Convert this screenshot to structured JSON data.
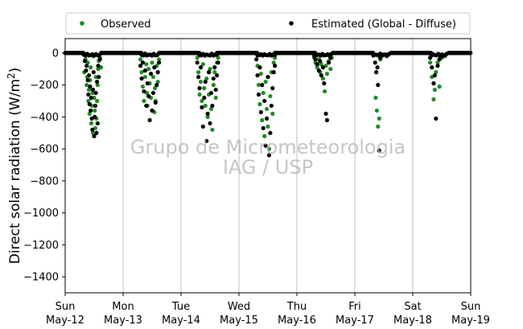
{
  "chart_data": {
    "type": "scatter",
    "ylabel_main": "Direct solar radiation (W/m",
    "ylabel_sup": "2",
    "ylabel_close": ")",
    "xlim": [
      0,
      7
    ],
    "ylim": [
      -1500,
      90
    ],
    "yticks": [
      0,
      -200,
      -400,
      -600,
      -800,
      -1000,
      -1200,
      -1400
    ],
    "xticks": [
      {
        "x": 0,
        "day": "Sun",
        "date": "May-12"
      },
      {
        "x": 1,
        "day": "Mon",
        "date": "May-13"
      },
      {
        "x": 2,
        "day": "Tue",
        "date": "May-14"
      },
      {
        "x": 3,
        "day": "Wed",
        "date": "May-15"
      },
      {
        "x": 4,
        "day": "Thu",
        "date": "May-16"
      },
      {
        "x": 5,
        "day": "Fri",
        "date": "May-17"
      },
      {
        "x": 6,
        "day": "Sat",
        "date": "May-18"
      },
      {
        "x": 7,
        "day": "Sun",
        "date": "May-19"
      }
    ],
    "grid": "vertical",
    "legend_placement": "top",
    "series": [
      {
        "name": "Observed",
        "color": "#228b22",
        "points": [
          [
            0.33,
            -120
          ],
          [
            0.35,
            -40
          ],
          [
            0.37,
            -200
          ],
          [
            0.38,
            -150
          ],
          [
            0.39,
            -60
          ],
          [
            0.4,
            -300
          ],
          [
            0.41,
            -230
          ],
          [
            0.42,
            -380
          ],
          [
            0.43,
            -170
          ],
          [
            0.44,
            -90
          ],
          [
            0.45,
            -440
          ],
          [
            0.46,
            -330
          ],
          [
            0.47,
            -250
          ],
          [
            0.48,
            -500
          ],
          [
            0.49,
            -20
          ],
          [
            0.5,
            -280
          ],
          [
            0.51,
            -360
          ],
          [
            0.52,
            -470
          ],
          [
            0.53,
            -150
          ],
          [
            0.54,
            -410
          ],
          [
            0.55,
            -300
          ],
          [
            0.56,
            -200
          ],
          [
            0.57,
            -100
          ],
          [
            0.58,
            -50
          ],
          [
            0.6,
            -30
          ],
          [
            0.62,
            -90
          ],
          [
            1.3,
            -40
          ],
          [
            1.32,
            -120
          ],
          [
            1.34,
            -210
          ],
          [
            1.36,
            -300
          ],
          [
            1.38,
            -150
          ],
          [
            1.4,
            -70
          ],
          [
            1.41,
            -250
          ],
          [
            1.42,
            -330
          ],
          [
            1.44,
            -100
          ],
          [
            1.46,
            -190
          ],
          [
            1.48,
            -280
          ],
          [
            1.5,
            -60
          ],
          [
            1.52,
            -150
          ],
          [
            1.54,
            -370
          ],
          [
            1.55,
            -220
          ],
          [
            1.56,
            -300
          ],
          [
            1.58,
            -80
          ],
          [
            1.6,
            -180
          ],
          [
            1.62,
            -40
          ],
          [
            2.28,
            -30
          ],
          [
            2.3,
            -120
          ],
          [
            2.32,
            -260
          ],
          [
            2.34,
            -180
          ],
          [
            2.36,
            -300
          ],
          [
            2.38,
            -70
          ],
          [
            2.4,
            -220
          ],
          [
            2.42,
            -330
          ],
          [
            2.44,
            -160
          ],
          [
            2.46,
            -400
          ],
          [
            2.48,
            -260
          ],
          [
            2.5,
            -100
          ],
          [
            2.52,
            -350
          ],
          [
            2.54,
            -480
          ],
          [
            2.56,
            -200
          ],
          [
            2.58,
            -120
          ],
          [
            2.6,
            -280
          ],
          [
            2.62,
            -60
          ],
          [
            2.64,
            -30
          ],
          [
            3.32,
            -80
          ],
          [
            3.34,
            -200
          ],
          [
            3.36,
            -320
          ],
          [
            3.38,
            -130
          ],
          [
            3.4,
            -420
          ],
          [
            3.42,
            -250
          ],
          [
            3.44,
            -520
          ],
          [
            3.46,
            -180
          ],
          [
            3.48,
            -350
          ],
          [
            3.5,
            -460
          ],
          [
            3.52,
            -600
          ],
          [
            3.54,
            -270
          ],
          [
            3.56,
            -120
          ],
          [
            3.58,
            -380
          ],
          [
            3.6,
            -60
          ],
          [
            3.62,
            -30
          ],
          [
            4.3,
            -30
          ],
          [
            4.32,
            -60
          ],
          [
            4.35,
            -90
          ],
          [
            4.38,
            -40
          ],
          [
            4.4,
            -120
          ],
          [
            4.42,
            -70
          ],
          [
            4.45,
            -160
          ],
          [
            4.48,
            -240
          ],
          [
            4.5,
            -80
          ],
          [
            4.52,
            -130
          ],
          [
            4.55,
            -50
          ],
          [
            4.58,
            -100
          ],
          [
            4.6,
            -30
          ],
          [
            5.36,
            -280
          ],
          [
            5.38,
            -360
          ],
          [
            5.4,
            -460
          ],
          [
            5.42,
            -410
          ],
          [
            5.44,
            -40
          ],
          [
            5.46,
            -20
          ],
          [
            5.5,
            -10
          ],
          [
            5.55,
            -20
          ],
          [
            6.3,
            -60
          ],
          [
            6.33,
            -150
          ],
          [
            6.36,
            -290
          ],
          [
            6.38,
            -230
          ],
          [
            6.4,
            -120
          ],
          [
            6.43,
            -60
          ],
          [
            6.46,
            -210
          ],
          [
            6.5,
            -30
          ],
          [
            6.55,
            -20
          ]
        ]
      },
      {
        "name": "Estimated (Global - Diffuse)",
        "color": "#000000",
        "points": [
          [
            0.34,
            -50
          ],
          [
            0.36,
            -110
          ],
          [
            0.37,
            -80
          ],
          [
            0.39,
            -170
          ],
          [
            0.4,
            -260
          ],
          [
            0.41,
            -140
          ],
          [
            0.42,
            -320
          ],
          [
            0.43,
            -210
          ],
          [
            0.44,
            -360
          ],
          [
            0.45,
            -280
          ],
          [
            0.46,
            -410
          ],
          [
            0.47,
            -480
          ],
          [
            0.48,
            -230
          ],
          [
            0.49,
            -120
          ],
          [
            0.5,
            -520
          ],
          [
            0.51,
            -400
          ],
          [
            0.52,
            -330
          ],
          [
            0.53,
            -250
          ],
          [
            0.54,
            -500
          ],
          [
            0.55,
            -180
          ],
          [
            0.56,
            -440
          ],
          [
            0.57,
            -80
          ],
          [
            0.58,
            -150
          ],
          [
            0.6,
            -40
          ],
          [
            1.3,
            -80
          ],
          [
            1.32,
            -160
          ],
          [
            1.34,
            -60
          ],
          [
            1.36,
            -240
          ],
          [
            1.38,
            -110
          ],
          [
            1.4,
            -330
          ],
          [
            1.42,
            -190
          ],
          [
            1.44,
            -270
          ],
          [
            1.46,
            -420
          ],
          [
            1.48,
            -130
          ],
          [
            1.5,
            -360
          ],
          [
            1.52,
            -250
          ],
          [
            1.54,
            -90
          ],
          [
            1.56,
            -310
          ],
          [
            1.58,
            -200
          ],
          [
            1.6,
            -120
          ],
          [
            1.62,
            -60
          ],
          [
            2.28,
            -60
          ],
          [
            2.3,
            -150
          ],
          [
            2.32,
            -220
          ],
          [
            2.34,
            -90
          ],
          [
            2.36,
            -340
          ],
          [
            2.38,
            -460
          ],
          [
            2.4,
            -280
          ],
          [
            2.42,
            -180
          ],
          [
            2.44,
            -550
          ],
          [
            2.46,
            -380
          ],
          [
            2.48,
            -120
          ],
          [
            2.5,
            -440
          ],
          [
            2.52,
            -250
          ],
          [
            2.54,
            -330
          ],
          [
            2.56,
            -160
          ],
          [
            2.58,
            -90
          ],
          [
            2.6,
            -230
          ],
          [
            2.62,
            -140
          ],
          [
            2.64,
            -60
          ],
          [
            3.3,
            -40
          ],
          [
            3.32,
            -140
          ],
          [
            3.34,
            -260
          ],
          [
            3.36,
            -90
          ],
          [
            3.38,
            -370
          ],
          [
            3.4,
            -200
          ],
          [
            3.42,
            -470
          ],
          [
            3.44,
            -300
          ],
          [
            3.46,
            -580
          ],
          [
            3.48,
            -410
          ],
          [
            3.5,
            -150
          ],
          [
            3.52,
            -640
          ],
          [
            3.54,
            -500
          ],
          [
            3.56,
            -330
          ],
          [
            3.58,
            -220
          ],
          [
            3.6,
            -120
          ],
          [
            3.62,
            -80
          ],
          [
            4.3,
            -20
          ],
          [
            4.32,
            -40
          ],
          [
            4.35,
            -70
          ],
          [
            4.38,
            -110
          ],
          [
            4.4,
            -50
          ],
          [
            4.42,
            -140
          ],
          [
            4.45,
            -90
          ],
          [
            4.47,
            -190
          ],
          [
            4.5,
            -380
          ],
          [
            4.52,
            -420
          ],
          [
            4.55,
            -60
          ],
          [
            4.58,
            -30
          ],
          [
            5.35,
            -60
          ],
          [
            5.37,
            -120
          ],
          [
            5.39,
            -90
          ],
          [
            5.4,
            -200
          ],
          [
            5.42,
            -610
          ],
          [
            5.44,
            -30
          ],
          [
            5.5,
            -10
          ],
          [
            5.55,
            -15
          ],
          [
            6.3,
            -30
          ],
          [
            6.33,
            -90
          ],
          [
            6.36,
            -190
          ],
          [
            6.38,
            -140
          ],
          [
            6.4,
            -410
          ],
          [
            6.43,
            -80
          ],
          [
            6.46,
            -40
          ],
          [
            6.5,
            -20
          ]
        ]
      }
    ]
  },
  "legend": {
    "observed_label": "Observed",
    "estimated_label": "Estimated (Global - Diffuse)"
  },
  "watermark": {
    "line1": "Grupo de Micrometeorologia",
    "line2": "IAG / USP"
  }
}
